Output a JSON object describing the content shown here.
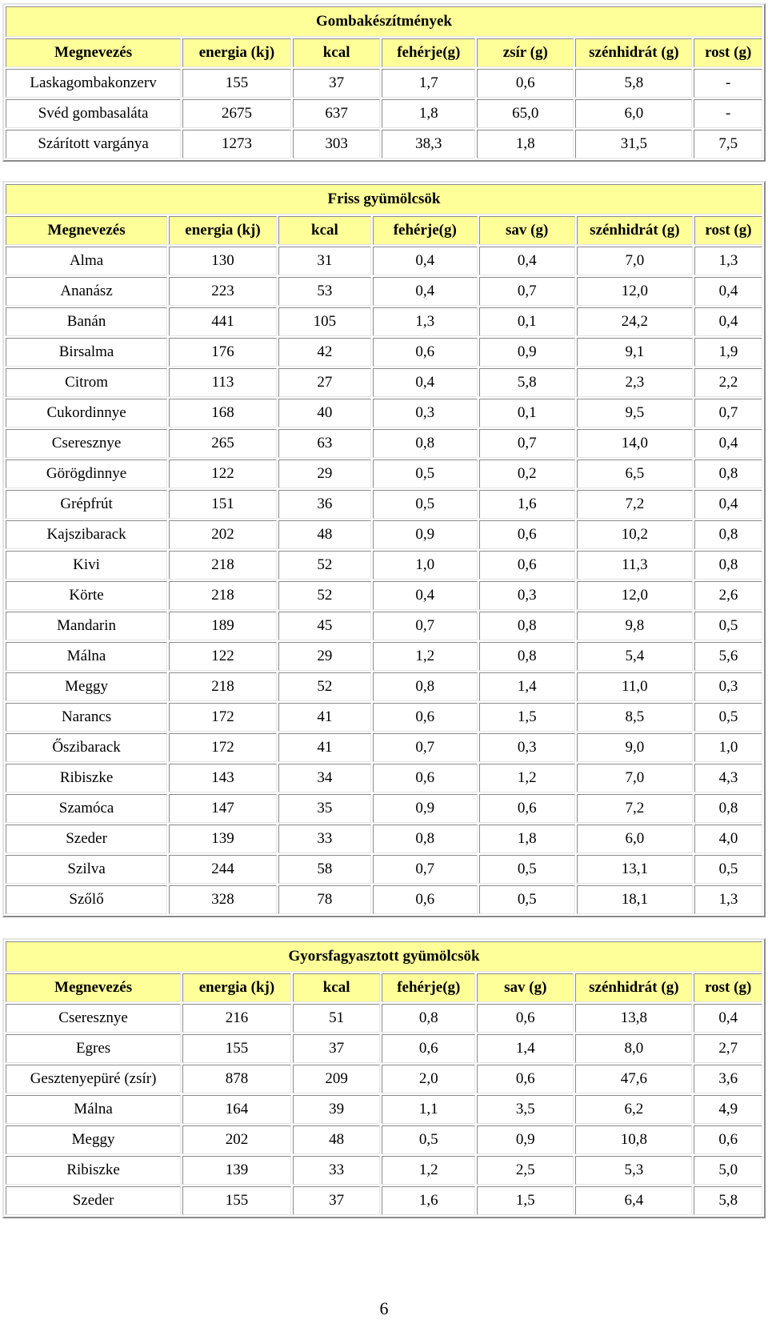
{
  "tables": [
    {
      "title": "Gombakészítmények",
      "headers": [
        "Megnevezés",
        "energia (kj)",
        "kcal",
        "fehérje(g)",
        "zsír (g)",
        "szénhidrát (g)",
        "rost (g)"
      ],
      "rows": [
        [
          "Laskagombakonzerv",
          "155",
          "37",
          "1,7",
          "0,6",
          "5,8",
          "-"
        ],
        [
          "Svéd gombasaláta",
          "2675",
          "637",
          "1,8",
          "65,0",
          "6,0",
          "-"
        ],
        [
          "Szárított vargánya",
          "1273",
          "303",
          "38,3",
          "1,8",
          "31,5",
          "7,5"
        ]
      ]
    },
    {
      "title": "Friss gyümölcsök",
      "headers": [
        "Megnevezés",
        "energia (kj)",
        "kcal",
        "fehérje(g)",
        "sav (g)",
        "szénhidrát (g)",
        "rost (g)"
      ],
      "rows": [
        [
          "Alma",
          "130",
          "31",
          "0,4",
          "0,4",
          "7,0",
          "1,3"
        ],
        [
          "Ananász",
          "223",
          "53",
          "0,4",
          "0,7",
          "12,0",
          "0,4"
        ],
        [
          "Banán",
          "441",
          "105",
          "1,3",
          "0,1",
          "24,2",
          "0,4"
        ],
        [
          "Birsalma",
          "176",
          "42",
          "0,6",
          "0,9",
          "9,1",
          "1,9"
        ],
        [
          "Citrom",
          "113",
          "27",
          "0,4",
          "5,8",
          "2,3",
          "2,2"
        ],
        [
          "Cukordinnye",
          "168",
          "40",
          "0,3",
          "0,1",
          "9,5",
          "0,7"
        ],
        [
          "Cseresznye",
          "265",
          "63",
          "0,8",
          "0,7",
          "14,0",
          "0,4"
        ],
        [
          "Görögdinnye",
          "122",
          "29",
          "0,5",
          "0,2",
          "6,5",
          "0,8"
        ],
        [
          "Grépfrút",
          "151",
          "36",
          "0,5",
          "1,6",
          "7,2",
          "0,4"
        ],
        [
          "Kajszibarack",
          "202",
          "48",
          "0,9",
          "0,6",
          "10,2",
          "0,8"
        ],
        [
          "Kivi",
          "218",
          "52",
          "1,0",
          "0,6",
          "11,3",
          "0,8"
        ],
        [
          "Körte",
          "218",
          "52",
          "0,4",
          "0,3",
          "12,0",
          "2,6"
        ],
        [
          "Mandarin",
          "189",
          "45",
          "0,7",
          "0,8",
          "9,8",
          "0,5"
        ],
        [
          "Málna",
          "122",
          "29",
          "1,2",
          "0,8",
          "5,4",
          "5,6"
        ],
        [
          "Meggy",
          "218",
          "52",
          "0,8",
          "1,4",
          "11,0",
          "0,3"
        ],
        [
          "Narancs",
          "172",
          "41",
          "0,6",
          "1,5",
          "8,5",
          "0,5"
        ],
        [
          "Őszibarack",
          "172",
          "41",
          "0,7",
          "0,3",
          "9,0",
          "1,0"
        ],
        [
          "Ribiszke",
          "143",
          "34",
          "0,6",
          "1,2",
          "7,0",
          "4,3"
        ],
        [
          "Szamóca",
          "147",
          "35",
          "0,9",
          "0,6",
          "7,2",
          "0,8"
        ],
        [
          "Szeder",
          "139",
          "33",
          "0,8",
          "1,8",
          "6,0",
          "4,0"
        ],
        [
          "Szilva",
          "244",
          "58",
          "0,7",
          "0,5",
          "13,1",
          "0,5"
        ],
        [
          "Szőlő",
          "328",
          "78",
          "0,6",
          "0,5",
          "18,1",
          "1,3"
        ]
      ]
    },
    {
      "title": "Gyorsfagyasztott gyümölcsök",
      "headers": [
        "Megnevezés",
        "energia (kj)",
        "kcal",
        "fehérje(g)",
        "sav (g)",
        "szénhidrát (g)",
        "rost (g)"
      ],
      "rows": [
        [
          "Cseresznye",
          "216",
          "51",
          "0,8",
          "0,6",
          "13,8",
          "0,4"
        ],
        [
          "Egres",
          "155",
          "37",
          "0,6",
          "1,4",
          "8,0",
          "2,7"
        ],
        [
          "Gesztenyepüré (zsír)",
          "878",
          "209",
          "2,0",
          "0,6",
          "47,6",
          "3,6"
        ],
        [
          "Málna",
          "164",
          "39",
          "1,1",
          "3,5",
          "6,2",
          "4,9"
        ],
        [
          "Meggy",
          "202",
          "48",
          "0,5",
          "0,9",
          "10,8",
          "0,6"
        ],
        [
          "Ribiszke",
          "139",
          "33",
          "1,2",
          "2,5",
          "5,3",
          "5,0"
        ],
        [
          "Szeder",
          "155",
          "37",
          "1,6",
          "1,5",
          "6,4",
          "5,8"
        ]
      ]
    }
  ],
  "page_number": "6",
  "colors": {
    "header_fill": "#ffff99",
    "border_dark": "#8a8a8a",
    "border_light": "#e4e4e4"
  }
}
